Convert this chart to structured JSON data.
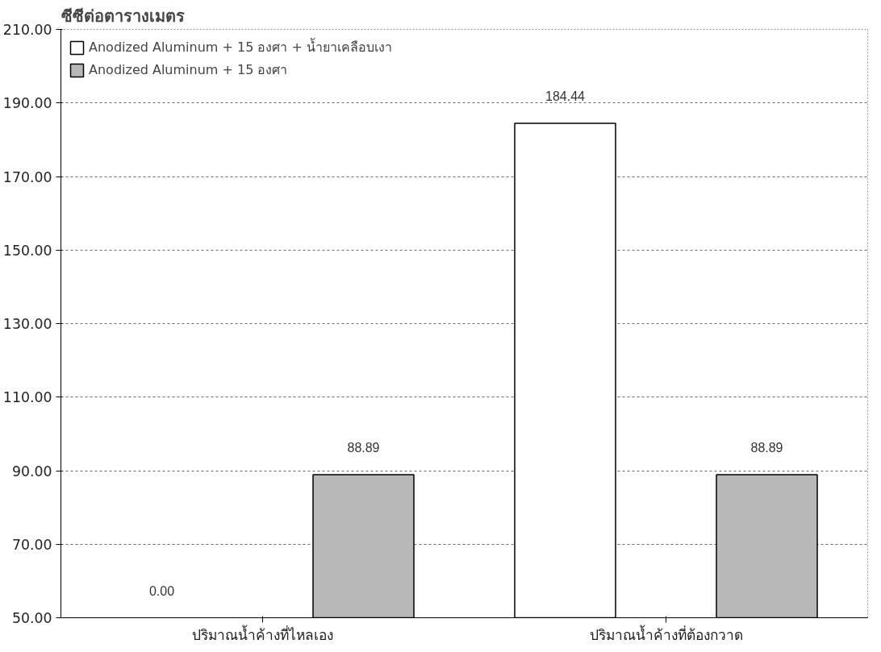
{
  "chart_data": {
    "type": "bar",
    "ylabel": "ซีซีต่อตารางเมตร",
    "categories": [
      "ปริมาณน้ำค้างที่ไหลเอง",
      "ปริมาณน้ำค้างที่ต้องกวาด"
    ],
    "series": [
      {
        "name": "Anodized Aluminum + 15 องศา + น้ำยาเคลือบเงา",
        "color": "#ffffff",
        "values": [
          null,
          184.44
        ],
        "value_labels": [
          "0.00",
          "184.44"
        ]
      },
      {
        "name": "Anodized Aluminum + 15 องศา",
        "color": "#b8b8b8",
        "values": [
          88.89,
          88.89
        ],
        "value_labels": [
          "88.89",
          "88.89"
        ]
      }
    ],
    "ylim": [
      50,
      210
    ],
    "yticks": [
      {
        "value": 50,
        "label": "50.00"
      },
      {
        "value": 70,
        "label": "70.00"
      },
      {
        "value": 90,
        "label": "90.00"
      },
      {
        "value": 110,
        "label": "110.00"
      },
      {
        "value": 130,
        "label": "130.00"
      },
      {
        "value": 150,
        "label": "150.00"
      },
      {
        "value": 170,
        "label": "170.00"
      },
      {
        "value": 190,
        "label": "190.00"
      },
      {
        "value": 210,
        "label": "210.00"
      }
    ],
    "grid": "y",
    "legend": "top left"
  }
}
